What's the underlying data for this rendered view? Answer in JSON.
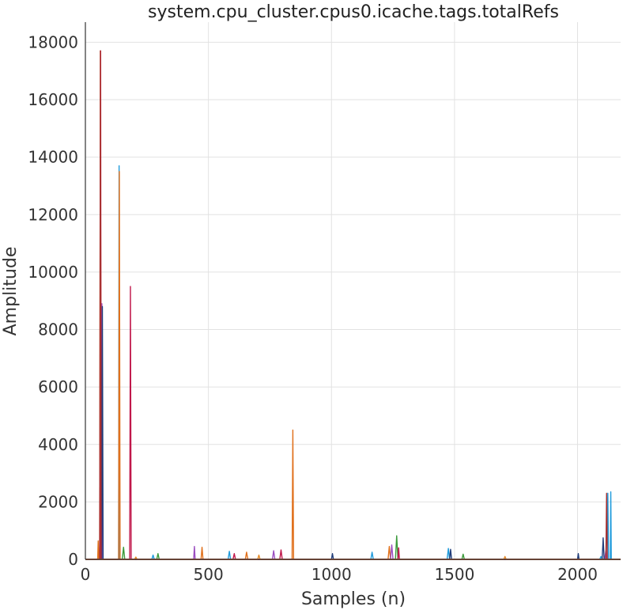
{
  "chart_data": {
    "type": "line",
    "title": "system.cpu_cluster.cpus0.icache.tags.totalRefs",
    "xlabel": "Samples (n)",
    "ylabel": "Amplitude",
    "xlim": [
      0,
      2175
    ],
    "ylim": [
      0,
      18700
    ],
    "x_ticks": [
      0,
      500,
      1000,
      1500,
      2000
    ],
    "y_ticks": [
      0,
      2000,
      4000,
      6000,
      8000,
      10000,
      12000,
      14000,
      16000,
      18000
    ],
    "grid": true,
    "legend": "none",
    "series": [
      {
        "color": "#1f9bdc",
        "points": [
          [
            0,
            0
          ],
          [
            135,
            0
          ],
          [
            137,
            13700
          ],
          [
            139,
            0
          ],
          [
            270,
            0
          ],
          [
            275,
            150
          ],
          [
            280,
            0
          ],
          [
            580,
            0
          ],
          [
            585,
            280
          ],
          [
            590,
            0
          ],
          [
            1160,
            0
          ],
          [
            1165,
            250
          ],
          [
            1170,
            0
          ],
          [
            1470,
            0
          ],
          [
            1475,
            380
          ],
          [
            1480,
            0
          ],
          [
            2090,
            0
          ],
          [
            2095,
            100
          ],
          [
            2100,
            0
          ],
          [
            2120,
            0
          ],
          [
            2123,
            2300
          ],
          [
            2126,
            0
          ],
          [
            2133,
            0
          ],
          [
            2135,
            2350
          ],
          [
            2137,
            0
          ],
          [
            2175,
            0
          ]
        ]
      },
      {
        "color": "#e0701c",
        "points": [
          [
            0,
            0
          ],
          [
            50,
            0
          ],
          [
            52,
            640
          ],
          [
            55,
            0
          ],
          [
            58,
            0
          ],
          [
            61,
            17700
          ],
          [
            64,
            0
          ],
          [
            135,
            0
          ],
          [
            138,
            13500
          ],
          [
            141,
            0
          ],
          [
            470,
            0
          ],
          [
            474,
            420
          ],
          [
            478,
            0
          ],
          [
            650,
            0
          ],
          [
            655,
            250
          ],
          [
            660,
            0
          ],
          [
            840,
            0
          ],
          [
            843,
            4500
          ],
          [
            846,
            0
          ],
          [
            1230,
            0
          ],
          [
            1235,
            450
          ],
          [
            1240,
            0
          ],
          [
            2175,
            0
          ]
        ]
      },
      {
        "color": "#3a9a3a",
        "points": [
          [
            0,
            0
          ],
          [
            150,
            0
          ],
          [
            155,
            420
          ],
          [
            160,
            0
          ],
          [
            290,
            0
          ],
          [
            295,
            200
          ],
          [
            300,
            0
          ],
          [
            1260,
            0
          ],
          [
            1265,
            820
          ],
          [
            1270,
            0
          ],
          [
            1530,
            0
          ],
          [
            1535,
            180
          ],
          [
            1540,
            0
          ],
          [
            2175,
            0
          ]
        ]
      },
      {
        "color": "#9b4ec0",
        "points": [
          [
            0,
            0
          ],
          [
            64,
            0
          ],
          [
            67,
            8900
          ],
          [
            70,
            0
          ],
          [
            440,
            0
          ],
          [
            443,
            450
          ],
          [
            446,
            0
          ],
          [
            760,
            0
          ],
          [
            765,
            300
          ],
          [
            770,
            0
          ],
          [
            1240,
            0
          ],
          [
            1245,
            500
          ],
          [
            1250,
            0
          ],
          [
            2110,
            0
          ],
          [
            2115,
            300
          ],
          [
            2120,
            0
          ],
          [
            2175,
            0
          ]
        ]
      },
      {
        "color": "#1f3c7a",
        "points": [
          [
            0,
            0
          ],
          [
            66,
            0
          ],
          [
            69,
            8800
          ],
          [
            72,
            0
          ],
          [
            1000,
            0
          ],
          [
            1004,
            200
          ],
          [
            1008,
            0
          ],
          [
            1480,
            0
          ],
          [
            1484,
            350
          ],
          [
            1488,
            0
          ],
          [
            2000,
            0
          ],
          [
            2003,
            200
          ],
          [
            2006,
            0
          ],
          [
            2100,
            0
          ],
          [
            2104,
            750
          ],
          [
            2108,
            0
          ],
          [
            2175,
            0
          ]
        ]
      },
      {
        "color": "#c0174a",
        "points": [
          [
            0,
            0
          ],
          [
            60,
            0
          ],
          [
            62,
            17700
          ],
          [
            64,
            0
          ],
          [
            180,
            0
          ],
          [
            183,
            9500
          ],
          [
            186,
            0
          ],
          [
            600,
            0
          ],
          [
            605,
            200
          ],
          [
            610,
            0
          ],
          [
            790,
            0
          ],
          [
            795,
            330
          ],
          [
            800,
            0
          ],
          [
            1270,
            0
          ],
          [
            1273,
            400
          ],
          [
            1276,
            0
          ],
          [
            2175,
            0
          ]
        ]
      },
      {
        "color": "#a83232",
        "points": [
          [
            0,
            0
          ],
          [
            58,
            0
          ],
          [
            61,
            17700
          ],
          [
            64,
            0
          ],
          [
            2115,
            0
          ],
          [
            2118,
            2300
          ],
          [
            2121,
            0
          ],
          [
            2175,
            0
          ]
        ]
      },
      {
        "color": "#e48a2a",
        "points": [
          [
            0,
            0
          ],
          [
            200,
            0
          ],
          [
            205,
            80
          ],
          [
            210,
            0
          ],
          [
            700,
            0
          ],
          [
            705,
            150
          ],
          [
            710,
            0
          ],
          [
            1700,
            0
          ],
          [
            1705,
            100
          ],
          [
            1710,
            0
          ],
          [
            2175,
            0
          ]
        ]
      }
    ]
  }
}
